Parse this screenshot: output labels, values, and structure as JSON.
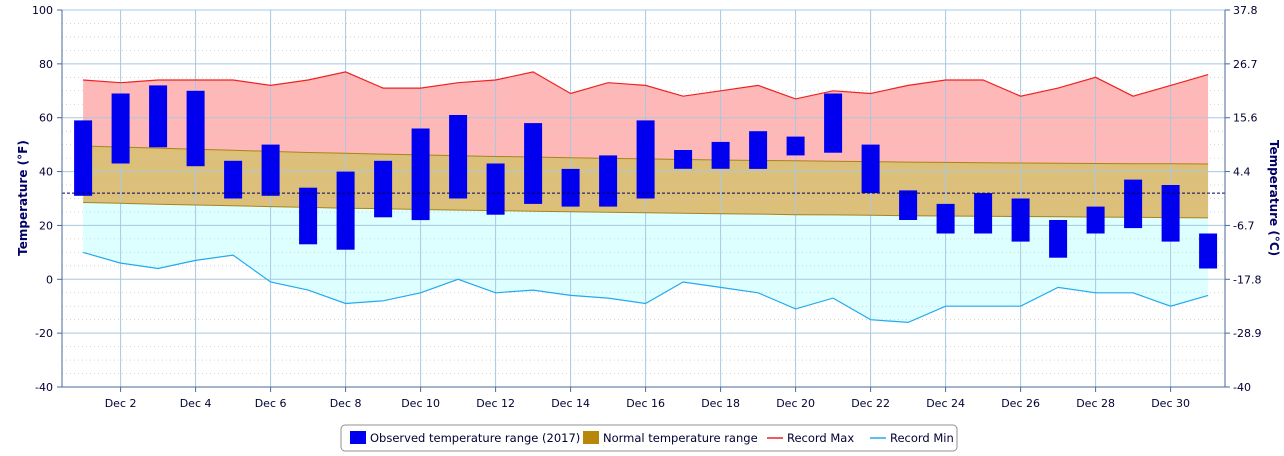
{
  "chart_data": {
    "type": "bar",
    "title": "",
    "ylabel_left": "Temperature (°F)",
    "ylabel_right": "Temperature (°C)",
    "ylim": [
      -40,
      100
    ],
    "yticks_left": [
      100,
      80,
      60,
      40,
      20,
      0,
      -20,
      -40
    ],
    "yticks_right_labels": [
      "37.8",
      "26.7",
      "15.6",
      "4.4",
      "-6.7",
      "-17.8",
      "-28.9",
      "-40"
    ],
    "x_days": [
      1,
      2,
      3,
      4,
      5,
      6,
      7,
      8,
      9,
      10,
      11,
      12,
      13,
      14,
      15,
      16,
      17,
      18,
      19,
      20,
      21,
      22,
      23,
      24,
      25,
      26,
      27,
      28,
      29,
      30,
      31
    ],
    "x_tick_days": [
      2,
      4,
      6,
      8,
      10,
      12,
      14,
      16,
      18,
      20,
      22,
      24,
      26,
      28,
      30
    ],
    "x_tick_labels": [
      "Dec 2",
      "Dec 4",
      "Dec 6",
      "Dec 8",
      "Dec 10",
      "Dec 12",
      "Dec 14",
      "Dec 16",
      "Dec 18",
      "Dec 20",
      "Dec 22",
      "Dec 24",
      "Dec 26",
      "Dec 28",
      "Dec 30"
    ],
    "freezing_line": 32,
    "legend_position": "bottom-center",
    "grid": true,
    "series": [
      {
        "name": "Observed temperature range (2017)",
        "type": "range-bar",
        "color": "#0000ee",
        "low": [
          31,
          43,
          49,
          42,
          30,
          31,
          13,
          11,
          23,
          22,
          30,
          24,
          28,
          27,
          27,
          30,
          41,
          41,
          41,
          46,
          47,
          32,
          22,
          17,
          17,
          14,
          8,
          17,
          19,
          14,
          4
        ],
        "high": [
          59,
          69,
          72,
          70,
          44,
          50,
          34,
          40,
          44,
          56,
          61,
          43,
          58,
          41,
          46,
          59,
          48,
          51,
          55,
          53,
          69,
          50,
          33,
          28,
          32,
          30,
          22,
          27,
          37,
          35,
          17
        ]
      },
      {
        "name": "Normal temperature range",
        "type": "range-area",
        "color": "#b8860b",
        "low": [
          28.5,
          28.2,
          27.9,
          27.6,
          27.3,
          27,
          26.7,
          26.4,
          26.2,
          25.9,
          25.7,
          25.5,
          25.3,
          25.1,
          24.9,
          24.7,
          24.5,
          24.3,
          24.2,
          24,
          23.9,
          23.8,
          23.6,
          23.5,
          23.4,
          23.3,
          23.2,
          23.1,
          23,
          22.9,
          22.8
        ],
        "high": [
          49.5,
          49.1,
          48.7,
          48.3,
          47.9,
          47.5,
          47.1,
          46.8,
          46.5,
          46.2,
          45.9,
          45.6,
          45.4,
          45.1,
          44.9,
          44.7,
          44.5,
          44.3,
          44.1,
          44,
          43.8,
          43.7,
          43.5,
          43.4,
          43.3,
          43.2,
          43.1,
          43,
          42.9,
          42.9,
          42.8
        ]
      },
      {
        "name": "Record Max",
        "type": "line",
        "color": "#ee2222",
        "fill": "#ffb8b8",
        "values": [
          74,
          73,
          74,
          74,
          74,
          72,
          74,
          77,
          71,
          71,
          73,
          74,
          77,
          69,
          73,
          72,
          68,
          70,
          72,
          67,
          70,
          69,
          72,
          74,
          74,
          68,
          71,
          75,
          68,
          72,
          76
        ]
      },
      {
        "name": "Record Min",
        "type": "line",
        "color": "#22aaee",
        "fill": "#ddffff",
        "values": [
          10,
          6,
          4,
          7,
          9,
          -1,
          -4,
          -9,
          -8,
          -5,
          0,
          -5,
          -4,
          -6,
          -7,
          -9,
          -1,
          -3,
          -5,
          -11,
          -7,
          -15,
          -16,
          -10,
          -10,
          -10,
          -3,
          -5,
          -5,
          -10,
          -6
        ]
      }
    ]
  }
}
